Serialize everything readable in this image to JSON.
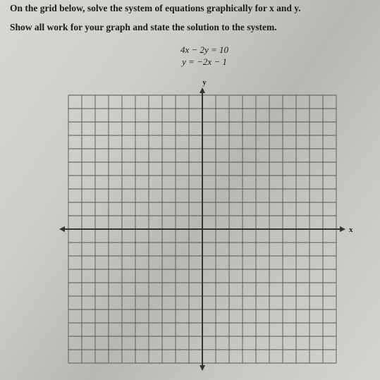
{
  "instructions": [
    "On the grid below, solve the system of equations graphically for x and y.",
    "Show all work for your graph and state the solution to the system."
  ],
  "equations": [
    "4x − 2y = 10",
    "y = −2x − 1"
  ],
  "axes": {
    "x_label": "x",
    "y_label": "y"
  }
}
